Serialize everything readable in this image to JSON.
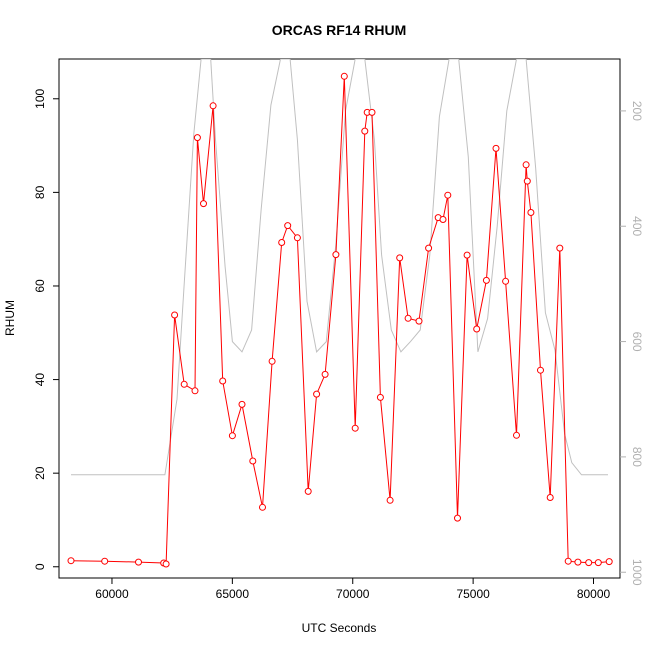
{
  "chart_data": {
    "type": "line",
    "title": "ORCAS RF14 RHUM",
    "xlabel": "UTC Seconds",
    "ylabel": "RHUM",
    "xlim": [
      57800,
      81100
    ],
    "ylim": [
      -2.4,
      108.5
    ],
    "x_ticks": [
      60000,
      65000,
      70000,
      75000,
      80000
    ],
    "y_ticks": [
      0,
      20,
      40,
      60,
      80,
      100
    ],
    "y2_axis": {
      "reversed": true,
      "lim": [
        1010,
        110
      ],
      "ticks": [
        200,
        400,
        600,
        800,
        1000
      ],
      "color": "#b0b0b0"
    },
    "grid": false,
    "series": [
      {
        "axis": "left",
        "color": "#ff0000",
        "markers": "open-circle",
        "x": [
          58300,
          59700,
          61100,
          62150,
          62250,
          62600,
          63000,
          63450,
          63550,
          63800,
          64200,
          64600,
          65000,
          65400,
          65850,
          66250,
          66650,
          67050,
          67300,
          67700,
          68150,
          68500,
          68850,
          69300,
          69650,
          70100,
          70500,
          70600,
          70800,
          71150,
          71550,
          71950,
          72300,
          72750,
          73150,
          73550,
          73750,
          73950,
          74350,
          74750,
          75150,
          75550,
          75950,
          76350,
          76800,
          77200,
          77250,
          77400,
          77800,
          78200,
          78600,
          78950,
          79350,
          79800,
          80200,
          80650
        ],
        "y": [
          1.3,
          1.2,
          1.0,
          0.8,
          0.6,
          53.8,
          39.0,
          37.6,
          91.7,
          77.6,
          98.5,
          39.7,
          28.0,
          34.7,
          22.6,
          12.7,
          43.9,
          69.3,
          72.9,
          70.3,
          16.1,
          36.9,
          41.1,
          66.7,
          104.8,
          29.6,
          93.1,
          97.1,
          97.1,
          36.2,
          14.2,
          66.0,
          53.1,
          52.5,
          68.1,
          74.6,
          74.2,
          79.4,
          10.4,
          66.6,
          50.8,
          61.2,
          89.4,
          61.0,
          28.1,
          85.9,
          82.4,
          75.7,
          42.0,
          14.8,
          68.1,
          1.2,
          1.0,
          0.9,
          0.9,
          1.1
        ]
      },
      {
        "axis": "right",
        "color": "#c0c0c0",
        "markers": "none",
        "x": [
          58300,
          62200,
          62700,
          63000,
          63400,
          63700,
          64100,
          64300,
          64700,
          65000,
          65400,
          65800,
          66200,
          66600,
          67000,
          67400,
          67700,
          68100,
          68500,
          68900,
          69300,
          69700,
          70100,
          70500,
          70900,
          71200,
          71600,
          72000,
          72400,
          72800,
          73200,
          73600,
          74000,
          74400,
          74800,
          75200,
          75600,
          76000,
          76400,
          76800,
          77200,
          77600,
          78000,
          78400,
          78800,
          79100,
          79500,
          80600
        ],
        "y": [
          831,
          831,
          700,
          500,
          240,
          110,
          110,
          250,
          470,
          600,
          618,
          580,
          370,
          190,
          110,
          110,
          250,
          530,
          618,
          600,
          430,
          200,
          110,
          110,
          250,
          450,
          580,
          618,
          600,
          580,
          450,
          210,
          110,
          110,
          280,
          618,
          560,
          400,
          200,
          110,
          110,
          300,
          550,
          615,
          760,
          810,
          831,
          831
        ]
      }
    ]
  }
}
